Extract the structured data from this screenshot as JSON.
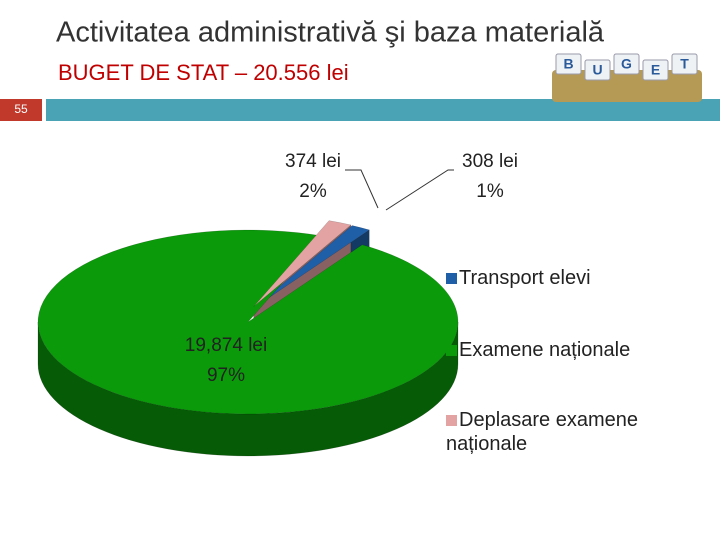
{
  "header": {
    "title": "Activitatea administrativă şi baza materială",
    "subtitle": "BUGET DE STAT – 20.556 lei",
    "slide_number": "55",
    "logo_letters": [
      "B",
      "U",
      "G",
      "E",
      "T"
    ]
  },
  "chart_data": {
    "type": "pie3d",
    "categories": [
      "Transport elevi",
      "Examene naționale",
      "Deplasare examene naționale"
    ],
    "values": [
      308,
      19874,
      374
    ],
    "value_labels": [
      "308 lei",
      "19,874 lei",
      "374 lei"
    ],
    "percents": [
      1,
      97,
      2
    ],
    "percent_labels": [
      "1%",
      "97%",
      "2%"
    ],
    "colors": [
      "#1f5fa8",
      "#0a9a0a",
      "#e3a3a3"
    ],
    "legend": "right"
  }
}
